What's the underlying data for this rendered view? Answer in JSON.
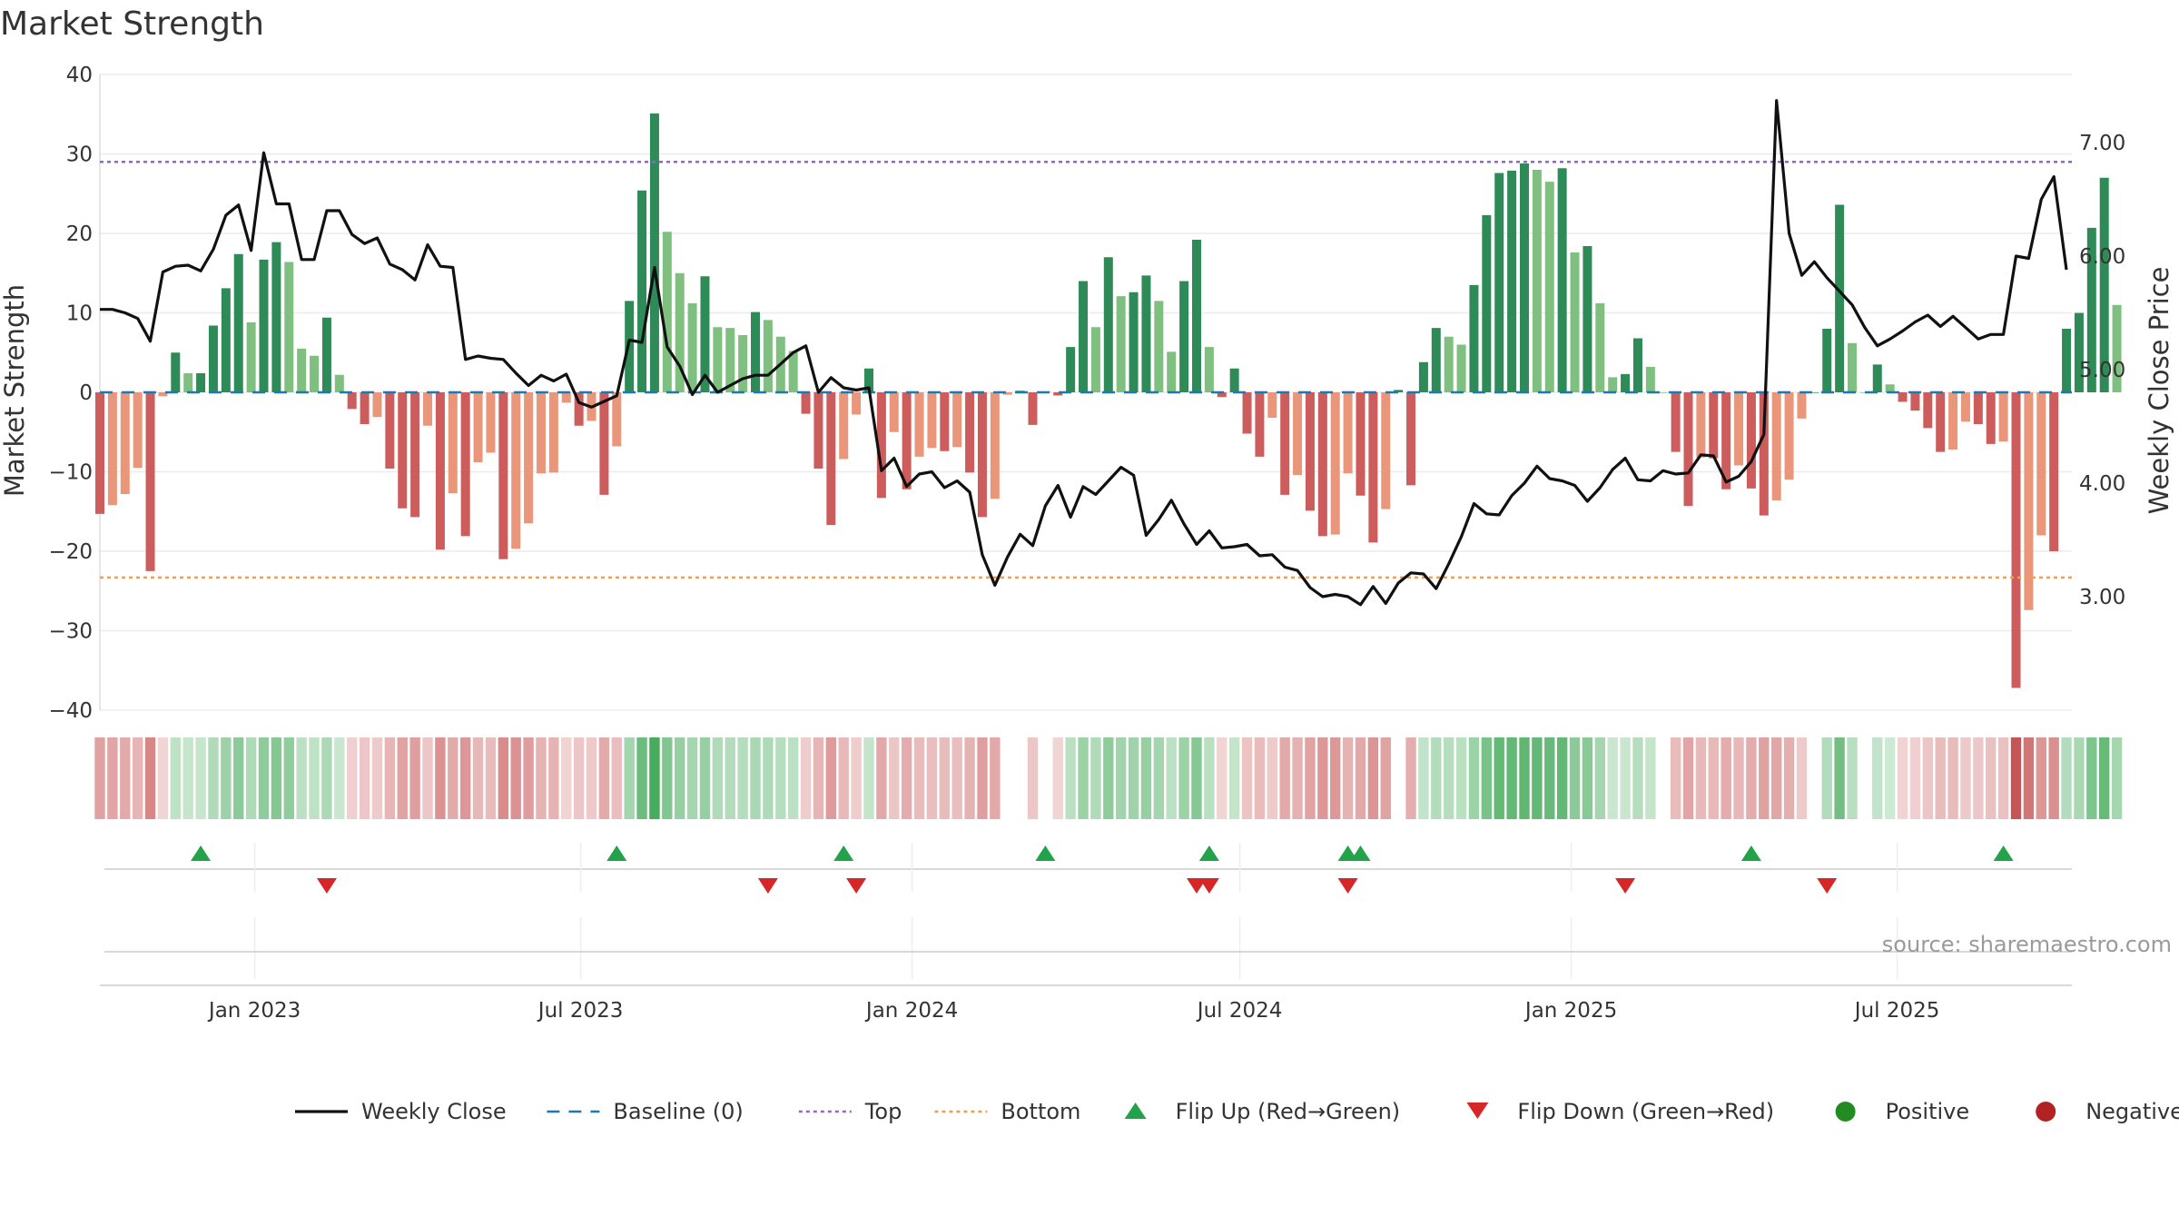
{
  "chart_data": {
    "type": "bar",
    "title": "Market Strength",
    "ylabel": "Market Strength",
    "ylabel_right": "Weekly Close Price",
    "ylim": [
      -40,
      40
    ],
    "ylim_right": [
      2.0,
      7.6
    ],
    "yticks": [
      40,
      30,
      20,
      10,
      0,
      -10,
      -20,
      -30,
      -40
    ],
    "ytick_labels": [
      "40",
      "30",
      "20",
      "10",
      "0",
      "−10",
      "−20",
      "−30",
      "−40"
    ],
    "yticks_right": [
      7.0,
      6.0,
      5.0,
      4.0,
      3.0
    ],
    "ytick_labels_right": [
      "7.00",
      "6.00",
      "5.00",
      "4.00",
      "3.00"
    ],
    "xlim": [
      "2022-10-07",
      "2025-10-06"
    ],
    "xticks": [
      {
        "date": "2023-01-01",
        "label": "Jan 2023"
      },
      {
        "date": "2023-07-01",
        "label": "Jul 2023"
      },
      {
        "date": "2024-01-01",
        "label": "Jan 2024"
      },
      {
        "date": "2024-07-01",
        "label": "Jul 2024"
      },
      {
        "date": "2025-01-01",
        "label": "Jan 2025"
      },
      {
        "date": "2025-07-01",
        "label": "Jul 2025"
      }
    ],
    "start_date": "2022-10-07",
    "interval_days": 7,
    "strength": [
      -15.3,
      -14.2,
      -12.8,
      -9.5,
      -22.5,
      -0.5,
      5.0,
      2.4,
      2.4,
      8.4,
      13.1,
      17.4,
      8.8,
      16.7,
      18.9,
      16.4,
      5.5,
      4.6,
      9.4,
      2.2,
      -2.1,
      -4.0,
      -3.1,
      -9.6,
      -14.6,
      -15.7,
      -4.2,
      -19.8,
      -12.7,
      -18.1,
      -8.8,
      -7.6,
      -21.0,
      -19.7,
      -16.5,
      -10.2,
      -10.1,
      -1.3,
      -4.2,
      -3.6,
      -12.9,
      -6.8,
      11.5,
      25.4,
      35.1,
      20.2,
      15.0,
      11.2,
      14.6,
      8.2,
      8.1,
      7.2,
      10.1,
      9.1,
      7.0,
      5.2,
      -2.7,
      -9.6,
      -16.7,
      -8.4,
      -2.8,
      3.0,
      -13.3,
      -5.0,
      -12.2,
      -8.1,
      -7.0,
      -7.4,
      -6.9,
      -10.1,
      -15.7,
      -13.4,
      -0.3,
      0.2,
      -4.1,
      0.1,
      -0.4,
      5.7,
      14.0,
      8.2,
      17.0,
      12.1,
      12.6,
      14.7,
      11.5,
      5.1,
      14.0,
      19.2,
      5.7,
      -0.6,
      3.0,
      -5.2,
      -8.1,
      -3.2,
      -12.9,
      -10.4,
      -14.9,
      -18.1,
      -17.9,
      -10.2,
      -13.0,
      -18.9,
      -14.7,
      0.3,
      -11.7,
      3.8,
      8.1,
      7.0,
      6.0,
      13.5,
      22.3,
      27.6,
      27.9,
      28.8,
      28.0,
      26.5,
      28.2,
      17.6,
      18.4,
      11.2,
      1.9,
      2.3,
      6.8,
      3.2,
      0.0,
      -7.5,
      -14.3,
      -8.2,
      -8.3,
      -12.2,
      -9.2,
      -12.1,
      -15.5,
      -13.6,
      -11.0,
      -3.3,
      0.0,
      8.0,
      23.6,
      6.2,
      0.0,
      3.5,
      1.0,
      -1.2,
      -2.3,
      -4.5,
      -7.5,
      -7.2,
      -3.7,
      -4.0,
      -6.5,
      -6.2,
      -37.2,
      -27.4,
      -18.0,
      -20.0,
      8.0,
      10.0,
      20.7,
      27.0,
      11.0
    ],
    "close": [
      5.53,
      5.53,
      5.5,
      5.45,
      5.25,
      5.86,
      5.91,
      5.92,
      5.87,
      6.06,
      6.36,
      6.45,
      6.05,
      6.91,
      6.46,
      6.46,
      5.97,
      5.97,
      6.4,
      6.4,
      6.19,
      6.11,
      6.16,
      5.93,
      5.88,
      5.79,
      6.1,
      5.91,
      5.9,
      5.09,
      5.12,
      5.1,
      5.09,
      4.97,
      4.86,
      4.95,
      4.9,
      4.96,
      4.71,
      4.67,
      4.72,
      4.77,
      5.26,
      5.24,
      5.9,
      5.2,
      5.03,
      4.78,
      4.95,
      4.8,
      4.86,
      4.92,
      4.95,
      4.95,
      5.05,
      5.15,
      5.21,
      4.8,
      4.93,
      4.84,
      4.82,
      4.84,
      4.11,
      4.22,
      3.97,
      4.08,
      4.1,
      3.96,
      4.02,
      3.92,
      3.37,
      3.1,
      3.35,
      3.55,
      3.45,
      3.8,
      3.98,
      3.7,
      3.97,
      3.9,
      4.02,
      4.14,
      4.07,
      3.54,
      3.68,
      3.85,
      3.64,
      3.46,
      3.58,
      3.43,
      3.44,
      3.46,
      3.36,
      3.37,
      3.26,
      3.23,
      3.08,
      3.0,
      3.02,
      3.0,
      2.93,
      3.09,
      2.94,
      3.12,
      3.21,
      3.2,
      3.07,
      3.29,
      3.53,
      3.82,
      3.73,
      3.72,
      3.89,
      4.0,
      4.15,
      4.04,
      4.02,
      3.98,
      3.84,
      3.96,
      4.12,
      4.22,
      4.03,
      4.02,
      4.11,
      4.08,
      4.09,
      4.25,
      4.24,
      4.01,
      4.06,
      4.19,
      4.43,
      7.37,
      6.2,
      5.83,
      5.95,
      5.81,
      5.69,
      5.57,
      5.37,
      5.21,
      5.27,
      5.34,
      5.42,
      5.48,
      5.38,
      5.47,
      5.37,
      5.27,
      5.31,
      5.31,
      6.0,
      5.98,
      6.5,
      6.7,
      5.88
    ],
    "flip_up_dates": [
      "2022-12-02",
      "2023-07-21",
      "2023-11-24",
      "2024-03-15",
      "2024-06-14",
      "2024-08-30",
      "2024-09-06",
      "2025-04-11",
      "2025-08-29"
    ],
    "flip_down_dates": [
      "2023-02-10",
      "2023-10-13",
      "2023-12-01",
      "2024-06-07",
      "2024-06-14",
      "2024-08-30",
      "2025-01-31",
      "2025-05-23"
    ],
    "reference_lines": [
      {
        "name": "Top",
        "value": 29
      },
      {
        "name": "Bottom",
        "value": -23.3
      },
      {
        "name": "Baseline (0)",
        "value": 0
      }
    ],
    "legend_position": "bottom",
    "legend": [
      {
        "label": "Weekly Close",
        "symbol": "line-solid"
      },
      {
        "label": "Baseline (0)",
        "symbol": "line-dashed"
      },
      {
        "label": "Top",
        "symbol": "line-dotted"
      },
      {
        "label": "Bottom",
        "symbol": "line-dotted"
      },
      {
        "label": "Flip Up (Red→Green)",
        "symbol": "triangle-up"
      },
      {
        "label": "Flip Down (Green→Red)",
        "symbol": "triangle-down"
      },
      {
        "label": "Positive",
        "symbol": "circle"
      },
      {
        "label": "Negative",
        "symbol": "circle"
      }
    ]
  },
  "source": "source: sharemaestro.com",
  "colors": {
    "positive_strong": "#2e8b57",
    "positive_light": "#7fbf7f",
    "negative_strong": "#cd5c5c",
    "negative_light": "#e9967a",
    "close_line": "#111111",
    "baseline": "#1f77b4",
    "top_line": "#9467bd",
    "bottom_line": "#f0a050",
    "flip_up": "#22a34a",
    "flip_down": "#d62728",
    "positive_dot": "#228b22",
    "negative_dot": "#b22222"
  }
}
